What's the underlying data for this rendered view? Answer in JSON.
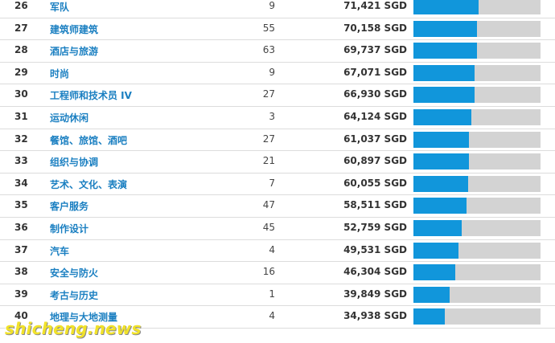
{
  "colors": {
    "bar_fill": "#1196db",
    "bar_track": "#d3d3d3",
    "name_link": "#1a7fc1",
    "watermark": "#f1e22a"
  },
  "max_salary": 71421,
  "rows": [
    {
      "rank": "26",
      "name": "军队",
      "count": "9",
      "salary": "71,421 SGD",
      "value": 71421
    },
    {
      "rank": "27",
      "name": "建筑师建筑",
      "count": "55",
      "salary": "70,158 SGD",
      "value": 70158
    },
    {
      "rank": "28",
      "name": "酒店与旅游",
      "count": "63",
      "salary": "69,737 SGD",
      "value": 69737
    },
    {
      "rank": "29",
      "name": "时尚",
      "count": "9",
      "salary": "67,071 SGD",
      "value": 67071
    },
    {
      "rank": "30",
      "name": "工程师和技术员 IV",
      "count": "27",
      "salary": "66,930 SGD",
      "value": 66930
    },
    {
      "rank": "31",
      "name": "运动休闲",
      "count": "3",
      "salary": "64,124 SGD",
      "value": 64124
    },
    {
      "rank": "32",
      "name": "餐馆、旅馆、酒吧",
      "count": "27",
      "salary": "61,037 SGD",
      "value": 61037
    },
    {
      "rank": "33",
      "name": "组织与协调",
      "count": "21",
      "salary": "60,897 SGD",
      "value": 60897
    },
    {
      "rank": "34",
      "name": "艺术、文化、表演",
      "count": "7",
      "salary": "60,055 SGD",
      "value": 60055
    },
    {
      "rank": "35",
      "name": "客户服务",
      "count": "47",
      "salary": "58,511 SGD",
      "value": 58511
    },
    {
      "rank": "36",
      "name": "制作设计",
      "count": "45",
      "salary": "52,759 SGD",
      "value": 52759
    },
    {
      "rank": "37",
      "name": "汽车",
      "count": "4",
      "salary": "49,531 SGD",
      "value": 49531
    },
    {
      "rank": "38",
      "name": "安全与防火",
      "count": "16",
      "salary": "46,304 SGD",
      "value": 46304
    },
    {
      "rank": "39",
      "name": "考古与历史",
      "count": "1",
      "salary": "39,849 SGD",
      "value": 39849
    },
    {
      "rank": "40",
      "name": "地理与大地测量",
      "count": "4",
      "salary": "34,938 SGD",
      "value": 34938
    }
  ],
  "watermark": {
    "text": "shicheng.news"
  }
}
